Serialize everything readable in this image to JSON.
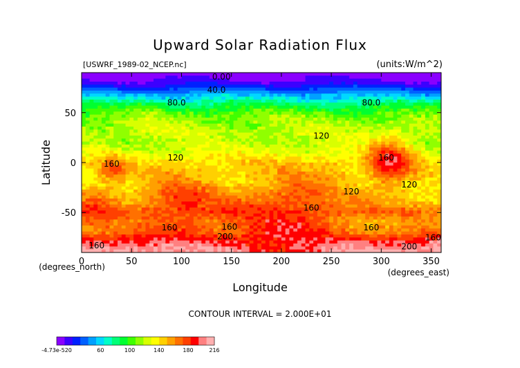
{
  "chart_data": {
    "type": "heatmap",
    "title": "Upward Solar Radiation Flux",
    "source_label": "[USWRF_1989-02_NCEP.nc]",
    "units_label": "(units:W/m^2)",
    "xlabel": "Longitude",
    "xunit_label": "(degrees_east)",
    "ylabel": "Latitude",
    "yunit_label": "(degrees_north)",
    "xlim": [
      0,
      360
    ],
    "ylim": [
      -90,
      90
    ],
    "xticks": [
      "0",
      "50",
      "100",
      "150",
      "200",
      "250",
      "300",
      "350"
    ],
    "xtick_values": [
      0,
      50,
      100,
      150,
      200,
      250,
      300,
      350
    ],
    "yticks": [
      "50",
      "0",
      "-50"
    ],
    "ytick_values": [
      50,
      0,
      -50
    ],
    "contour_interval_label": "CONTOUR INTERVAL = 2.000E+01",
    "contour_labels": [
      {
        "text": "0.00",
        "lon": 140,
        "lat": 83
      },
      {
        "text": "40.0",
        "lon": 135,
        "lat": 70
      },
      {
        "text": "80.0",
        "lon": 95,
        "lat": 57
      },
      {
        "text": "80.0",
        "lon": 290,
        "lat": 57
      },
      {
        "text": "120",
        "lon": 240,
        "lat": 24
      },
      {
        "text": "120",
        "lon": 94,
        "lat": 2
      },
      {
        "text": "160",
        "lon": 30,
        "lat": -4
      },
      {
        "text": "160",
        "lon": 305,
        "lat": 2
      },
      {
        "text": "120",
        "lon": 270,
        "lat": -32
      },
      {
        "text": "120",
        "lon": 328,
        "lat": -25
      },
      {
        "text": "160",
        "lon": 15,
        "lat": -86
      },
      {
        "text": "160",
        "lon": 230,
        "lat": -48
      },
      {
        "text": "160",
        "lon": 88,
        "lat": -68
      },
      {
        "text": "160",
        "lon": 148,
        "lat": -67
      },
      {
        "text": "160",
        "lon": 290,
        "lat": -68
      },
      {
        "text": "160",
        "lon": 352,
        "lat": -78
      },
      {
        "text": "200.",
        "lon": 145,
        "lat": -77
      },
      {
        "text": "200",
        "lon": 328,
        "lat": -87
      }
    ],
    "latitude_profile": [
      {
        "lat": 90,
        "value": 0
      },
      {
        "lat": 80,
        "value": 15
      },
      {
        "lat": 70,
        "value": 45
      },
      {
        "lat": 60,
        "value": 80
      },
      {
        "lat": 50,
        "value": 105
      },
      {
        "lat": 40,
        "value": 115
      },
      {
        "lat": 30,
        "value": 122
      },
      {
        "lat": 20,
        "value": 118
      },
      {
        "lat": 10,
        "value": 125
      },
      {
        "lat": 0,
        "value": 138
      },
      {
        "lat": -10,
        "value": 140
      },
      {
        "lat": -20,
        "value": 135
      },
      {
        "lat": -30,
        "value": 145
      },
      {
        "lat": -40,
        "value": 152
      },
      {
        "lat": -50,
        "value": 168
      },
      {
        "lat": -60,
        "value": 150
      },
      {
        "lat": -70,
        "value": 165
      },
      {
        "lat": -80,
        "value": 200
      },
      {
        "lat": -90,
        "value": 216
      }
    ],
    "hotspots": [
      {
        "lon": 308,
        "lat": 0,
        "radius": 16,
        "value": 200
      },
      {
        "lon": 30,
        "lat": -8,
        "radius": 10,
        "value": 175
      },
      {
        "lon": 100,
        "lat": -50,
        "radius": 28,
        "value": 185
      },
      {
        "lon": 220,
        "lat": -52,
        "radius": 25,
        "value": 175
      },
      {
        "lon": 15,
        "lat": -48,
        "radius": 14,
        "value": 180
      },
      {
        "lon": 200,
        "lat": -82,
        "radius": 40,
        "value": 190
      },
      {
        "lon": 250,
        "lat": -12,
        "radius": 14,
        "value": 155
      },
      {
        "lon": 65,
        "lat": 30,
        "radius": 14,
        "value": 125
      }
    ],
    "colorbar": {
      "tick_labels": [
        "-4.73e-520",
        "60",
        "100",
        "140",
        "180",
        "216"
      ],
      "tick_values": [
        0,
        60,
        100,
        140,
        180,
        216
      ],
      "min": 0,
      "max": 216,
      "colors": [
        "#8a00ff",
        "#3c00ff",
        "#0020ff",
        "#0060ff",
        "#00a0ff",
        "#00d8ff",
        "#00ffc8",
        "#00ff78",
        "#00ff30",
        "#40ff00",
        "#90ff00",
        "#d8ff00",
        "#ffff00",
        "#ffd000",
        "#ffa000",
        "#ff7000",
        "#ff4000",
        "#ff0000",
        "#ff8080",
        "#ffb0b0"
      ]
    }
  }
}
